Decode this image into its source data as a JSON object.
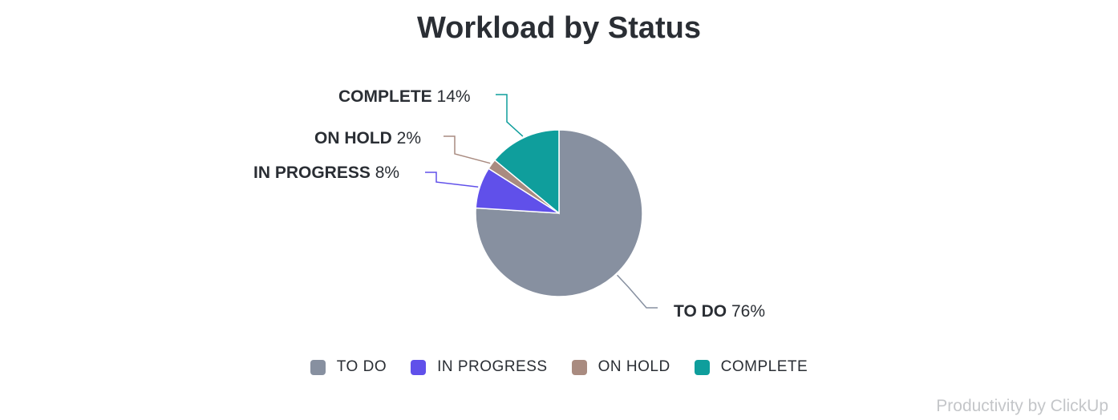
{
  "chart_data": {
    "type": "pie",
    "title": "Workload by Status",
    "slices": [
      {
        "label": "TO DO",
        "value": 76,
        "display": "76%",
        "color": "#8790a0"
      },
      {
        "label": "IN PROGRESS",
        "value": 8,
        "display": "8%",
        "color": "#6050ea"
      },
      {
        "label": "ON HOLD",
        "value": 2,
        "display": "2%",
        "color": "#a98b80"
      },
      {
        "label": "COMPLETE",
        "value": 14,
        "display": "14%",
        "color": "#0f9e9c"
      }
    ],
    "legend_position": "bottom"
  },
  "credit": "Productivity by ClickUp"
}
